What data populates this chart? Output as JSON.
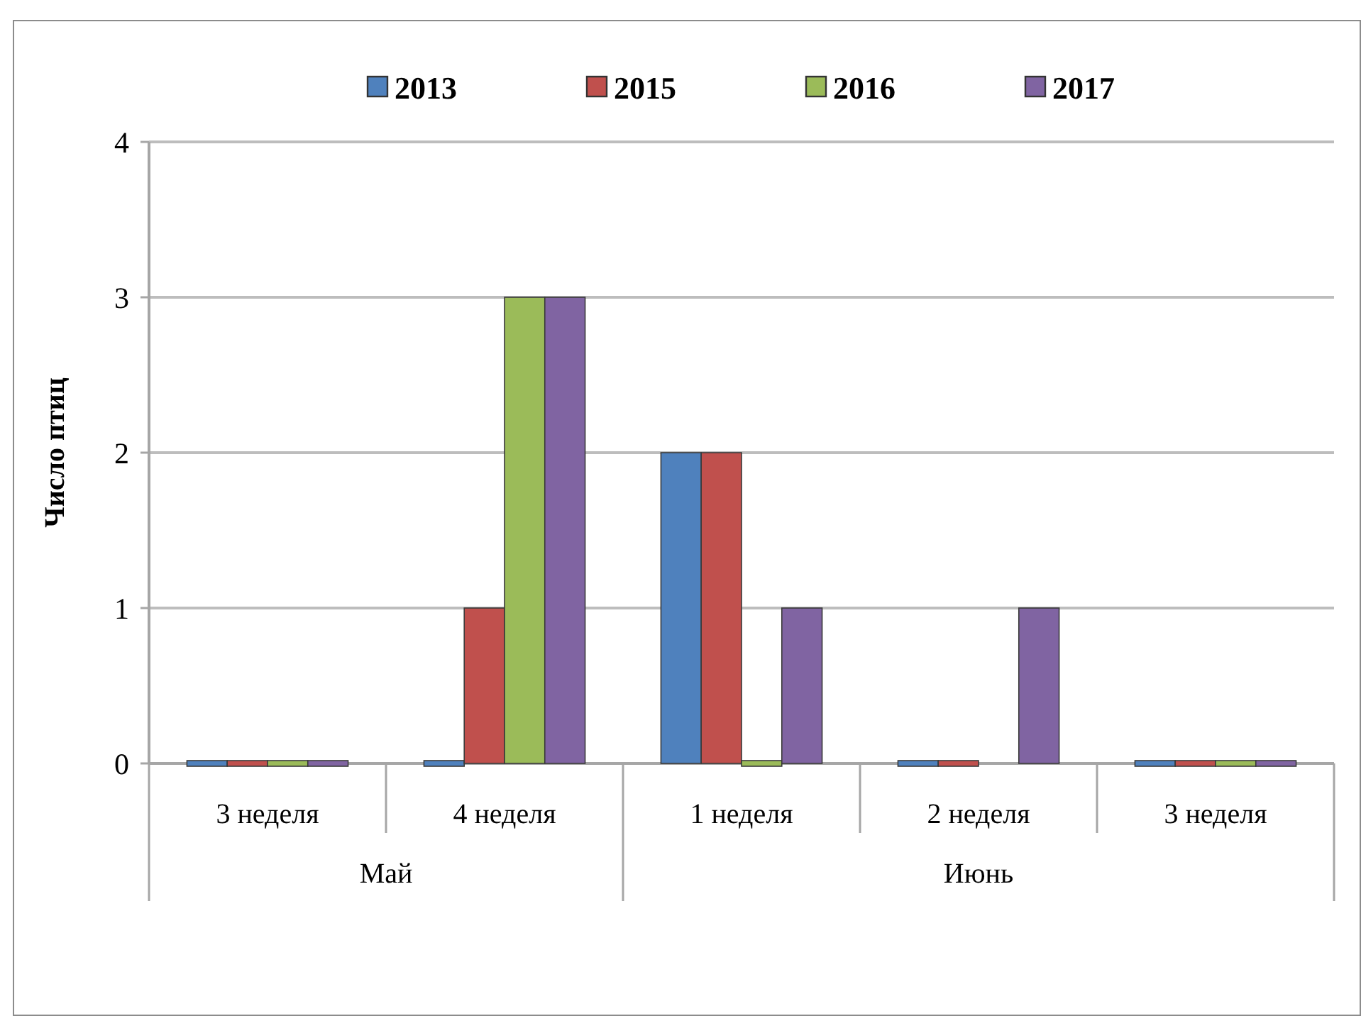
{
  "chart_data": {
    "type": "bar",
    "ylabel": "Число птиц",
    "categories": [
      "3 неделя",
      "4 неделя",
      "1 неделя",
      "2 неделя",
      "3 неделя"
    ],
    "series": [
      {
        "name": "2013",
        "color": "#4f81bd",
        "values": [
          0,
          0,
          2,
          0,
          0
        ]
      },
      {
        "name": "2015",
        "color": "#c0504d",
        "values": [
          0,
          1,
          2,
          0,
          0
        ]
      },
      {
        "name": "2016",
        "color": "#9bbb59",
        "values": [
          0,
          3,
          0,
          null,
          0
        ]
      },
      {
        "name": "2017",
        "color": "#8064a2",
        "values": [
          0,
          3,
          1,
          1,
          0
        ]
      }
    ],
    "annotations": [
      "Май",
      "Июнь"
    ],
    "ylim": [
      0,
      4
    ],
    "yticks": [
      0,
      1,
      2,
      3,
      4
    ],
    "grid": "y",
    "legend": "top"
  }
}
